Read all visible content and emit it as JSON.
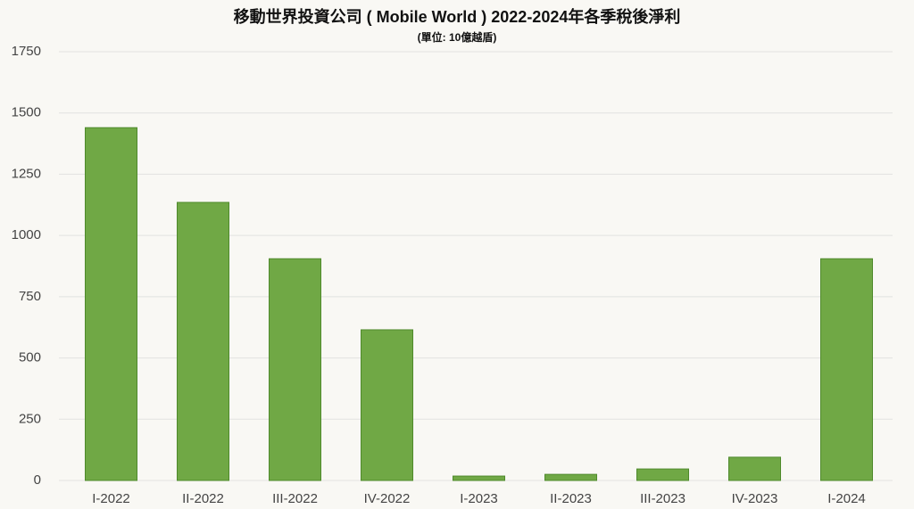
{
  "chart_data": {
    "type": "bar",
    "title": "移動世界投資公司 ( Mobile World ) 2022-2024年各季稅後淨利",
    "subtitle": "(單位: 10億越盾)",
    "categories": [
      "I-2022",
      "II-2022",
      "III-2022",
      "IV-2022",
      "I-2023",
      "II-2023",
      "III-2023",
      "IV-2023",
      "I-2024"
    ],
    "values": [
      1440,
      1135,
      905,
      615,
      18,
      25,
      47,
      95,
      905
    ],
    "color": "#70a845",
    "ylim": [
      0,
      1750
    ],
    "yticks": [
      0,
      250,
      500,
      750,
      1000,
      1250,
      1500,
      1750
    ],
    "grid": true
  }
}
